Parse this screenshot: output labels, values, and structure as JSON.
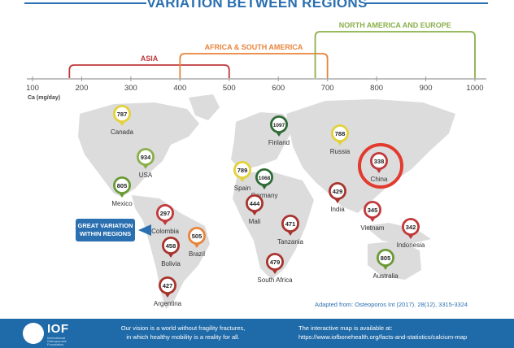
{
  "title": "VARIATION BETWEEN REGIONS",
  "axis": {
    "unit_label": "Ca (mg/day)",
    "ticks": [
      "100",
      "200",
      "300",
      "400",
      "500",
      "600",
      "700",
      "800",
      "900",
      "1000"
    ]
  },
  "regions": [
    {
      "label": "ASIA",
      "range": [
        175,
        500
      ],
      "color": "#c0393b"
    },
    {
      "label": "AFRICA & SOUTH AMERICA",
      "range": [
        400,
        700
      ],
      "color": "#e8843c"
    },
    {
      "label": "NORTH AMERICA AND EUROPE",
      "range": [
        675,
        1000
      ],
      "color": "#8ab04a"
    }
  ],
  "markers": [
    {
      "name": "Canada",
      "value": "787",
      "color": "#e3d13a"
    },
    {
      "name": "USA",
      "value": "934",
      "color": "#8ab04a"
    },
    {
      "name": "Mexico",
      "value": "805",
      "color": "#6a9a34"
    },
    {
      "name": "Colombia",
      "value": "297",
      "color": "#c0393b"
    },
    {
      "name": "Bolivia",
      "value": "458",
      "color": "#a8332c"
    },
    {
      "name": "Brazil",
      "value": "505",
      "color": "#e8843c"
    },
    {
      "name": "Argentina",
      "value": "427",
      "color": "#a8332c"
    },
    {
      "name": "Finland",
      "value": "1097",
      "color": "#2e6b35"
    },
    {
      "name": "Germany",
      "value": "1068",
      "color": "#2e6b35"
    },
    {
      "name": "Spain",
      "value": "789",
      "color": "#e3d13a"
    },
    {
      "name": "Russia",
      "value": "788",
      "color": "#e3d13a"
    },
    {
      "name": "China",
      "value": "338",
      "color": "#c0393b"
    },
    {
      "name": "Mali",
      "value": "444",
      "color": "#a8332c"
    },
    {
      "name": "India",
      "value": "429",
      "color": "#a8332c"
    },
    {
      "name": "Vietnam",
      "value": "345",
      "color": "#c0393b"
    },
    {
      "name": "Indonesia",
      "value": "342",
      "color": "#c0393b"
    },
    {
      "name": "Tanzania",
      "value": "471",
      "color": "#a8332c"
    },
    {
      "name": "South Africa",
      "value": "479",
      "color": "#a8332c"
    },
    {
      "name": "Australia",
      "value": "805",
      "color": "#6a9a34"
    }
  ],
  "callout": {
    "line1": "GREAT VARIATION",
    "line2": "WITHIN REGIONS"
  },
  "source": "Adapted from: Osteoporos Int (2017). 28(12), 3315-3324",
  "footer": {
    "logo": "IOF",
    "logo_sub": "International Osteoporosis Foundation",
    "vision_line1": "Our vision is a world without fragility fractures,",
    "vision_line2": "in which healthy mobility is a reality for all.",
    "map_line1": "The interactive map is available at:",
    "map_line2": "https://www.iofbonehealth.org/facts-and-statistics/calcium-map"
  },
  "colors": {
    "accent": "#2a6fb0",
    "footer_bg": "#1f6aa8",
    "map_land": "#dcdcdc",
    "highlight_ring": "#e23a2e"
  }
}
